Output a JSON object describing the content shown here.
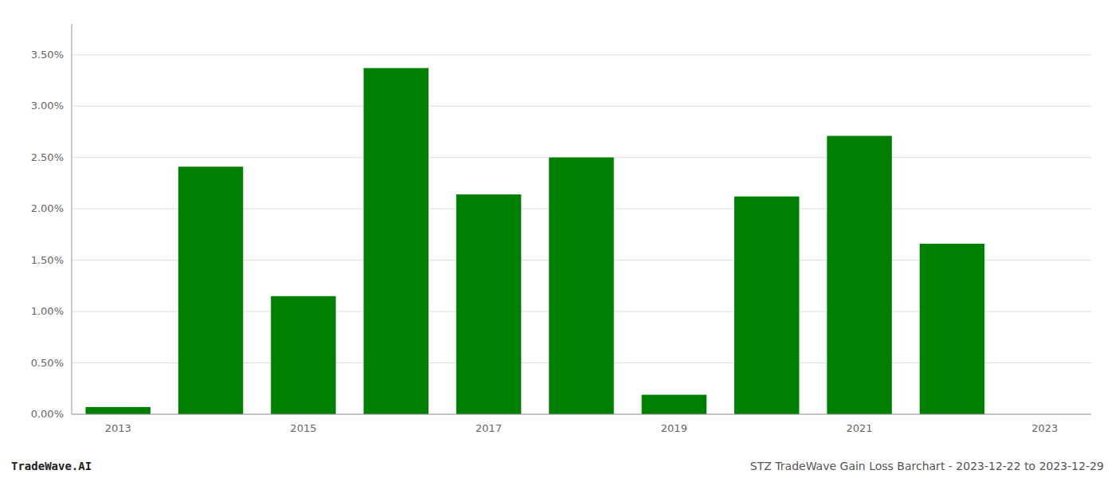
{
  "chart_data": {
    "type": "bar",
    "categories": [
      "2013",
      null,
      "2015",
      null,
      "2017",
      null,
      "2019",
      null,
      "2021",
      null,
      "2023"
    ],
    "values": [
      0.0007,
      0.0241,
      0.0115,
      0.0337,
      0.0214,
      0.025,
      0.0019,
      0.0212,
      0.0271,
      0.0166,
      0.0
    ],
    "color": "#008000",
    "ylim": [
      0,
      0.038
    ],
    "yticks": [
      {
        "value": 0.0,
        "label": "0.00%"
      },
      {
        "value": 0.005,
        "label": "0.50%"
      },
      {
        "value": 0.01,
        "label": "1.00%"
      },
      {
        "value": 0.015,
        "label": "1.50%"
      },
      {
        "value": 0.02,
        "label": "2.00%"
      },
      {
        "value": 0.025,
        "label": "2.50%"
      },
      {
        "value": 0.03,
        "label": "3.00%"
      },
      {
        "value": 0.035,
        "label": "3.50%"
      }
    ],
    "grid": true,
    "annotations": [
      "TradeWave.AI",
      "STZ TradeWave Gain Loss Barchart - 2023-12-22 to 2023-12-29"
    ]
  }
}
